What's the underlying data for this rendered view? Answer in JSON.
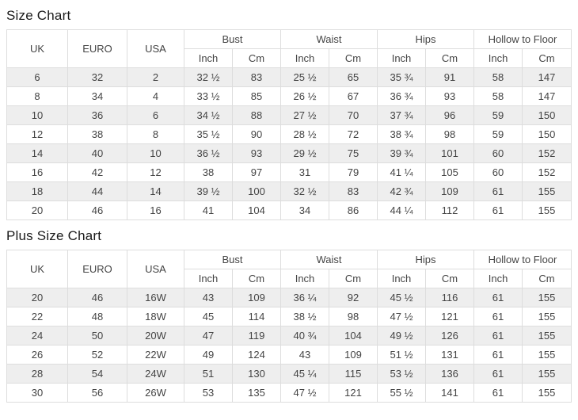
{
  "colors": {
    "row_stripe": "#eeeeee",
    "border": "#dddddd",
    "cell_text": "#444444",
    "title_text": "#1a1a1a",
    "background": "#ffffff"
  },
  "size_chart": {
    "title": "Size Chart",
    "plain_headers": [
      "UK",
      "EURO",
      "USA"
    ],
    "group_headers": [
      "Bust",
      "Waist",
      "Hips",
      "Hollow to Floor"
    ],
    "sub_headers": [
      "Inch",
      "Cm"
    ],
    "rows": [
      [
        "6",
        "32",
        "2",
        "32 ½",
        "83",
        "25 ½",
        "65",
        "35 ¾",
        "91",
        "58",
        "147"
      ],
      [
        "8",
        "34",
        "4",
        "33 ½",
        "85",
        "26 ½",
        "67",
        "36 ¾",
        "93",
        "58",
        "147"
      ],
      [
        "10",
        "36",
        "6",
        "34 ½",
        "88",
        "27 ½",
        "70",
        "37 ¾",
        "96",
        "59",
        "150"
      ],
      [
        "12",
        "38",
        "8",
        "35 ½",
        "90",
        "28 ½",
        "72",
        "38 ¾",
        "98",
        "59",
        "150"
      ],
      [
        "14",
        "40",
        "10",
        "36 ½",
        "93",
        "29 ½",
        "75",
        "39 ¾",
        "101",
        "60",
        "152"
      ],
      [
        "16",
        "42",
        "12",
        "38",
        "97",
        "31",
        "79",
        "41 ¼",
        "105",
        "60",
        "152"
      ],
      [
        "18",
        "44",
        "14",
        "39 ½",
        "100",
        "32 ½",
        "83",
        "42 ¾",
        "109",
        "61",
        "155"
      ],
      [
        "20",
        "46",
        "16",
        "41",
        "104",
        "34",
        "86",
        "44 ¼",
        "112",
        "61",
        "155"
      ]
    ]
  },
  "plus_size_chart": {
    "title": "Plus Size Chart",
    "plain_headers": [
      "UK",
      "EURO",
      "USA"
    ],
    "group_headers": [
      "Bust",
      "Waist",
      "Hips",
      "Hollow to Floor"
    ],
    "sub_headers": [
      "Inch",
      "Cm"
    ],
    "rows": [
      [
        "20",
        "46",
        "16W",
        "43",
        "109",
        "36 ¼",
        "92",
        "45 ½",
        "116",
        "61",
        "155"
      ],
      [
        "22",
        "48",
        "18W",
        "45",
        "114",
        "38 ½",
        "98",
        "47 ½",
        "121",
        "61",
        "155"
      ],
      [
        "24",
        "50",
        "20W",
        "47",
        "119",
        "40 ¾",
        "104",
        "49 ½",
        "126",
        "61",
        "155"
      ],
      [
        "26",
        "52",
        "22W",
        "49",
        "124",
        "43",
        "109",
        "51 ½",
        "131",
        "61",
        "155"
      ],
      [
        "28",
        "54",
        "24W",
        "51",
        "130",
        "45 ¼",
        "115",
        "53 ½",
        "136",
        "61",
        "155"
      ],
      [
        "30",
        "56",
        "26W",
        "53",
        "135",
        "47 ½",
        "121",
        "55 ½",
        "141",
        "61",
        "155"
      ]
    ]
  }
}
